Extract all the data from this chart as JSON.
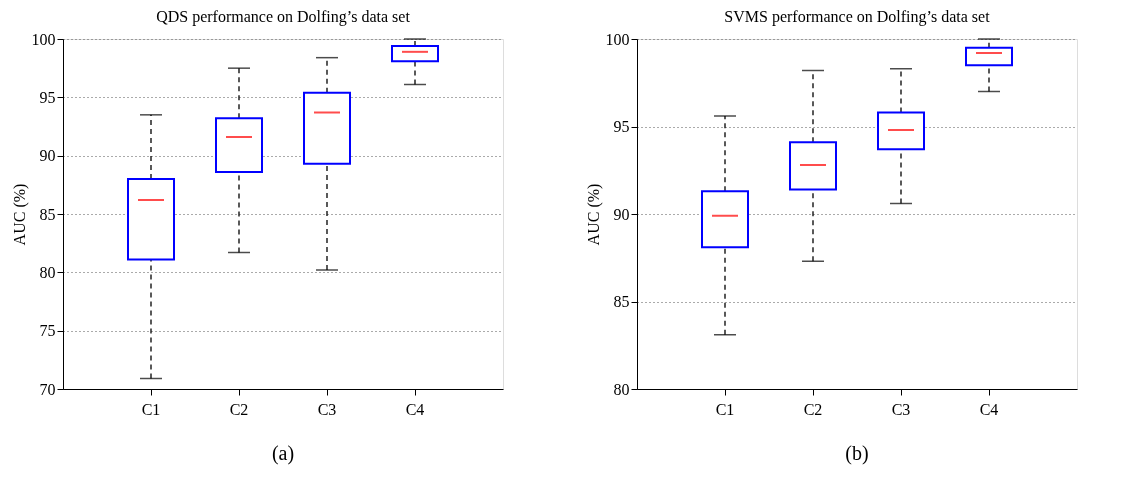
{
  "chart_data": [
    {
      "type": "box",
      "title": "QDS performance on Dolfing’s data set",
      "ylabel": "AUC (%)",
      "categories": [
        "C1",
        "C2",
        "C3",
        "C4"
      ],
      "series": [
        {
          "color": "#0000ff",
          "boxes": [
            {
              "low": 70.9,
              "q1": 81.1,
              "median": 86.2,
              "q3": 88.0,
              "high": 93.5
            },
            {
              "low": 81.7,
              "q1": 88.6,
              "median": 91.6,
              "q3": 93.2,
              "high": 97.5
            },
            {
              "low": 80.2,
              "q1": 89.3,
              "median": 93.7,
              "q3": 95.4,
              "high": 98.4
            },
            {
              "low": 96.1,
              "q1": 98.1,
              "median": 98.9,
              "q3": 99.4,
              "high": 100
            }
          ]
        }
      ],
      "ylim": [
        70,
        100
      ],
      "yticks": [
        70,
        75,
        80,
        85,
        90,
        95,
        100
      ],
      "grid": "y",
      "annotations": [
        "(a)"
      ]
    },
    {
      "type": "box",
      "title": "SVMS performance on Dolfing’s data set",
      "ylabel": "AUC (%)",
      "categories": [
        "C1",
        "C2",
        "C3",
        "C4"
      ],
      "series": [
        {
          "color": "#0000ff",
          "boxes": [
            {
              "low": 83.1,
              "q1": 88.1,
              "median": 89.9,
              "q3": 91.3,
              "high": 95.6
            },
            {
              "low": 87.3,
              "q1": 91.4,
              "median": 92.8,
              "q3": 94.1,
              "high": 98.2
            },
            {
              "low": 90.6,
              "q1": 93.7,
              "median": 94.8,
              "q3": 95.8,
              "high": 98.3
            },
            {
              "low": 97.0,
              "q1": 98.5,
              "median": 99.2,
              "q3": 99.5,
              "high": 100
            }
          ]
        }
      ],
      "ylim": [
        80,
        100
      ],
      "yticks": [
        80,
        85,
        90,
        95,
        100
      ],
      "grid": "y",
      "annotations": [
        "(b)"
      ]
    }
  ]
}
